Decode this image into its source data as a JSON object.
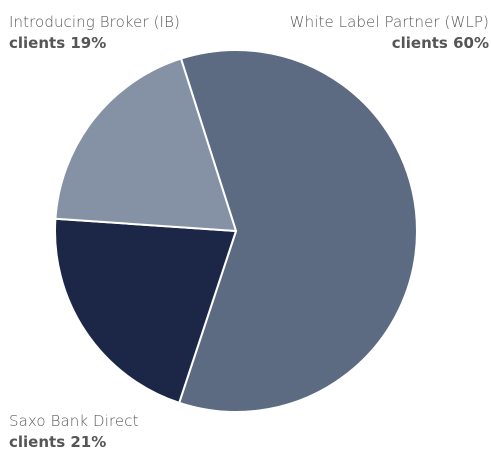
{
  "chart_data": {
    "type": "pie",
    "title": "",
    "legend": "none",
    "start_angle_deg": -17.7,
    "direction": "clockwise",
    "slices": [
      {
        "name": "White Label Partner (WLP)",
        "value_label": "clients 60%",
        "value": 60,
        "color": "#5c6b81"
      },
      {
        "name": "Saxo Bank Direct",
        "value_label": "clients  21%",
        "value": 21,
        "color": "#1c2748"
      },
      {
        "name": "Introducing Broker (IB)",
        "value_label": "clients 19%",
        "value": 19,
        "color": "#8592a6"
      }
    ]
  }
}
